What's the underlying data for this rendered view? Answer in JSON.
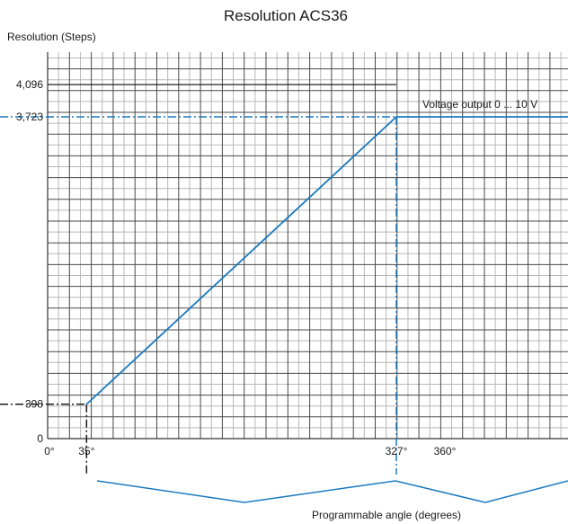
{
  "colors": {
    "accent": "#1a7abf",
    "grid_major": "#4a4a4a",
    "grid_minor": "#b8b8b8",
    "text": "#1a1a1a"
  },
  "chart_data": {
    "type": "line",
    "title": "Resolution ACS36",
    "ylabel": "Resolution (Steps)",
    "xlabel": "Programmable angle (degrees)",
    "annotation": "Voltage output 0 ... 10 V",
    "y_ticks": [
      {
        "value": 0,
        "label": "0"
      },
      {
        "value": 398,
        "label": "398"
      },
      {
        "value": 3723,
        "label": "3,723"
      },
      {
        "value": 4096,
        "label": "4,096"
      }
    ],
    "x_ticks": [
      {
        "value": 0,
        "label": "0°"
      },
      {
        "value": 35,
        "label": "35°"
      },
      {
        "value": 327,
        "label": "327°"
      },
      {
        "value": 360,
        "label": "360°"
      }
    ],
    "series": [
      {
        "x": [
          35,
          327,
          460
        ],
        "y": [
          398,
          3723,
          3723
        ]
      }
    ],
    "reference_lines": [
      {
        "from": [
          0,
          398
        ],
        "to": [
          35,
          398
        ]
      },
      {
        "from": [
          35,
          398
        ],
        "to": [
          35,
          0
        ]
      },
      {
        "from": [
          0,
          3723
        ],
        "to": [
          327,
          3723
        ]
      },
      {
        "from": [
          327,
          3723
        ],
        "to": [
          327,
          0
        ]
      }
    ],
    "grid": true
  }
}
